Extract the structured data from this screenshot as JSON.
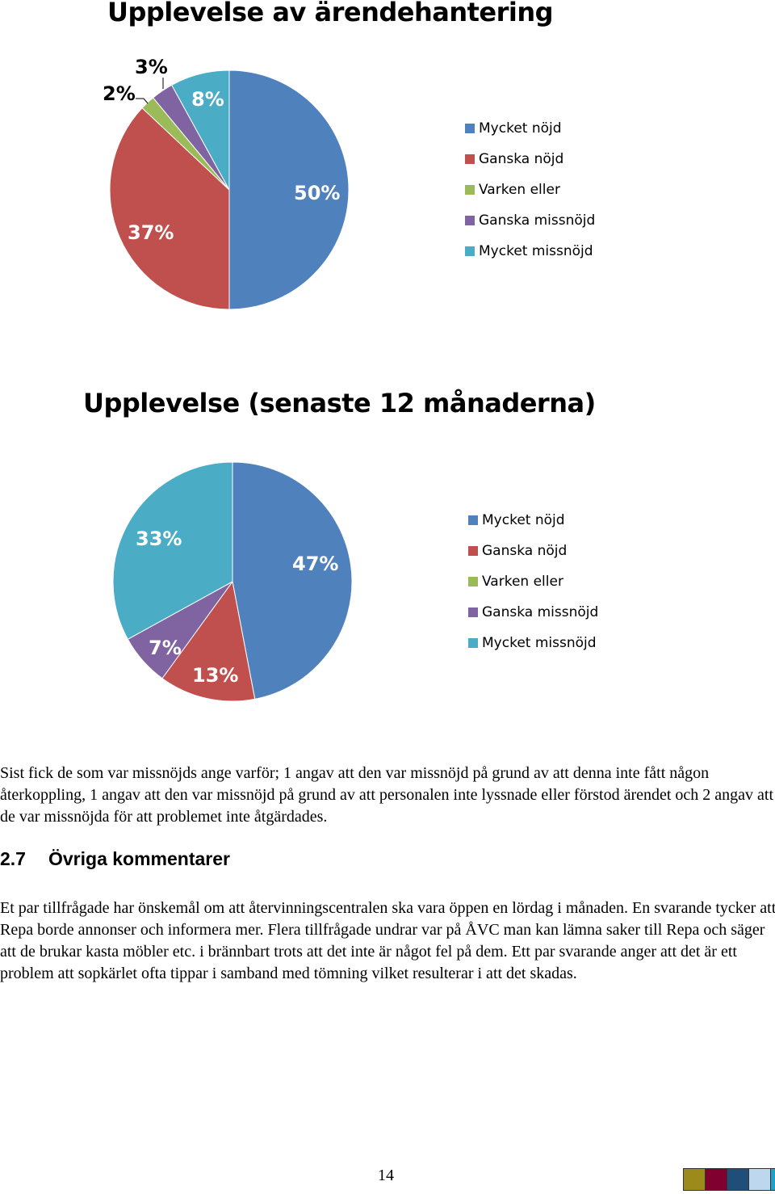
{
  "chart_data": [
    {
      "type": "pie",
      "title": "Upplevelse av ärendehantering",
      "categories": [
        "Mycket nöjd",
        "Ganska nöjd",
        "Varken eller",
        "Ganska missnöjd",
        "Mycket missnöjd"
      ],
      "values": [
        50,
        37,
        2,
        3,
        8
      ],
      "labels": [
        "50%",
        "37%",
        "2%",
        "3%",
        "8%"
      ],
      "legend_position": "right"
    },
    {
      "type": "pie",
      "title": "Upplevelse (senaste 12 månaderna)",
      "categories": [
        "Mycket nöjd",
        "Ganska nöjd",
        "Varken eller",
        "Ganska missnöjd",
        "Mycket missnöjd"
      ],
      "values": [
        47,
        13,
        0,
        7,
        33
      ],
      "labels": [
        "47%",
        "13%",
        "",
        "7%",
        "33%"
      ],
      "legend_position": "right"
    }
  ],
  "colors": [
    "#4f81bd",
    "#c0504d",
    "#9bbb59",
    "#8064a2",
    "#4bacc6"
  ],
  "text": {
    "paragraph1": "Sist fick de som var missnöjds ange varför; 1 angav att den var missnöjd på grund av att denna inte fått någon återkoppling, 1 angav att den var missnöjd på grund av att personalen inte lyssnade eller förstod ärendet och 2 angav att de var missnöjda för att problemet inte åtgärdades.",
    "section_number": "2.7",
    "section_title": "Övriga kommentarer",
    "paragraph2": "Et par tillfrågade har önskemål om att återvinningscentralen ska vara öppen en lördag i månaden. En svarande tycker att Repa borde annonser och informera mer. Flera tillfrågade undrar var på ÅVC man kan lämna saker till Repa och säger att de brukar kasta möbler etc. i brännbart trots att det inte är något fel på dem. Ett par svarande anger att det är ett problem att sopkärlet ofta tippar i samband med tömning vilket resulterar i att det skadas.",
    "page_number": "14"
  },
  "footer_strip_colors": [
    "#9c8a1a",
    "#800030",
    "#1f4e79",
    "#bdd7ee",
    "#1fa0c8"
  ]
}
